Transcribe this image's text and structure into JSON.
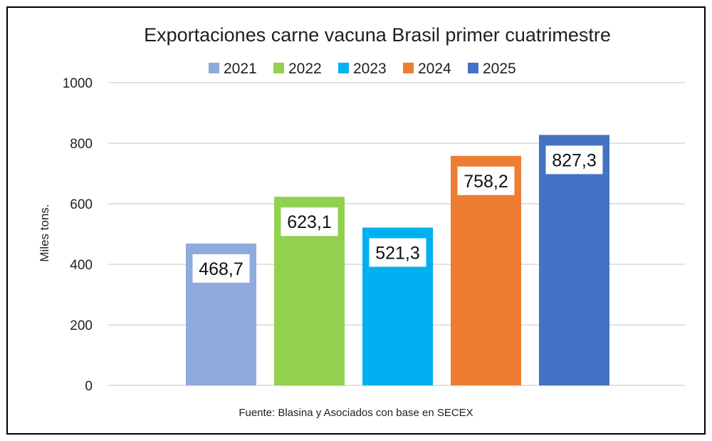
{
  "chart_data": {
    "type": "bar",
    "title": "Exportaciones carne vacuna Brasil primer cuatrimestre",
    "ylabel": "Miles tons.",
    "xlabel": "",
    "categories": [
      "2021",
      "2022",
      "2023",
      "2024",
      "2025"
    ],
    "values": [
      468.7,
      623.1,
      521.3,
      758.2,
      827.3
    ],
    "data_labels": [
      "468,7",
      "623,1",
      "521,3",
      "758,2",
      "827,3"
    ],
    "colors": [
      "#8faadc",
      "#92d050",
      "#00b0f0",
      "#ed7d31",
      "#4472c4"
    ],
    "ylim": [
      0,
      1000
    ],
    "yticks": [
      0,
      200,
      400,
      600,
      800,
      1000
    ],
    "ytick_labels": [
      "0",
      "200",
      "400",
      "600",
      "800",
      "1000"
    ],
    "legend": {
      "position": "top",
      "entries": [
        "2021",
        "2022",
        "2023",
        "2024",
        "2025"
      ]
    },
    "grid": true,
    "source": "Fuente: Blasina y Asociados con base en SECEX"
  }
}
